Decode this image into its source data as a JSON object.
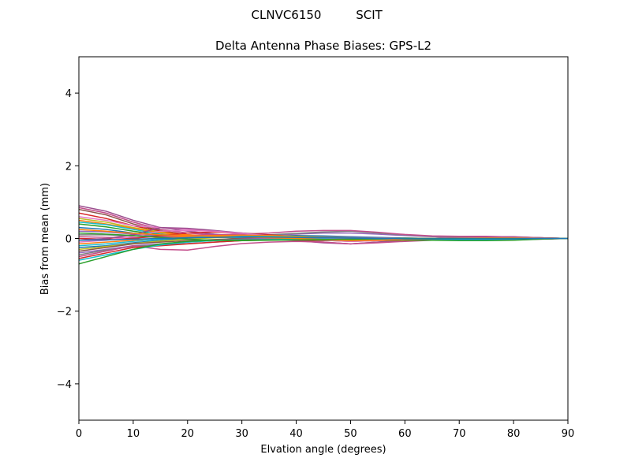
{
  "figure": {
    "suptitle_left": "CLNVC6150",
    "suptitle_right": "SCIT"
  },
  "chart_data": {
    "type": "line",
    "title": "Delta Antenna Phase Biases: GPS-L2",
    "xlabel": "Elvation angle (degrees)",
    "ylabel": "Bias from mean (mm)",
    "xlim": [
      0,
      90
    ],
    "ylim": [
      -5,
      5
    ],
    "xticks": [
      0,
      10,
      20,
      30,
      40,
      50,
      60,
      70,
      80,
      90
    ],
    "yticks": [
      -4,
      -2,
      0,
      2,
      4
    ],
    "xtick_labels": [
      "0",
      "10",
      "20",
      "30",
      "40",
      "50",
      "60",
      "70",
      "80",
      "90"
    ],
    "ytick_labels": [
      "−4",
      "−2",
      "0",
      "2",
      "4"
    ],
    "grid": false,
    "legend": "none",
    "x": [
      0,
      5,
      10,
      15,
      20,
      25,
      30,
      35,
      40,
      45,
      50,
      55,
      60,
      65,
      70,
      75,
      80,
      85,
      90
    ],
    "series": [
      {
        "color": "#c44e8c",
        "values": [
          0.85,
          0.7,
          0.45,
          0.25,
          0.15,
          0.1,
          0.05,
          0.0,
          -0.05,
          -0.1,
          -0.15,
          -0.1,
          -0.05,
          0.0,
          0.05,
          0.05,
          0.05,
          0.02,
          0.0
        ]
      },
      {
        "color": "#9a4d8e",
        "values": [
          0.9,
          0.75,
          0.5,
          0.3,
          0.2,
          0.12,
          0.06,
          0.0,
          -0.06,
          -0.12,
          -0.15,
          -0.1,
          -0.04,
          0.0,
          0.04,
          0.05,
          0.04,
          0.02,
          0.0
        ]
      },
      {
        "color": "#8c564b",
        "values": [
          0.8,
          0.65,
          0.4,
          0.22,
          0.1,
          0.05,
          0.02,
          0.0,
          -0.02,
          -0.05,
          -0.08,
          -0.06,
          -0.03,
          0.0,
          0.02,
          0.03,
          0.03,
          0.01,
          0.0
        ]
      },
      {
        "color": "#d62728",
        "values": [
          0.7,
          0.55,
          0.35,
          0.2,
          0.1,
          0.05,
          0.0,
          -0.03,
          -0.05,
          -0.06,
          -0.05,
          -0.03,
          -0.01,
          0.0,
          0.02,
          0.02,
          0.02,
          0.01,
          0.0
        ]
      },
      {
        "color": "#e377c2",
        "values": [
          0.6,
          0.5,
          0.35,
          0.3,
          0.25,
          0.2,
          0.12,
          0.05,
          -0.02,
          -0.05,
          -0.08,
          -0.06,
          -0.03,
          0.0,
          0.03,
          0.04,
          0.03,
          0.02,
          0.0
        ]
      },
      {
        "color": "#bcbd22",
        "values": [
          0.55,
          0.45,
          0.3,
          0.18,
          0.08,
          0.04,
          0.02,
          0.0,
          -0.02,
          -0.03,
          -0.03,
          -0.02,
          -0.01,
          0.0,
          0.01,
          0.01,
          0.01,
          0.0,
          0.0
        ]
      },
      {
        "color": "#ff7f0e",
        "values": [
          0.5,
          0.4,
          0.28,
          0.15,
          0.1,
          0.08,
          0.05,
          0.03,
          0.02,
          0.0,
          -0.02,
          -0.02,
          -0.01,
          0.0,
          0.01,
          0.02,
          0.02,
          0.01,
          0.0
        ]
      },
      {
        "color": "#17becf",
        "values": [
          0.45,
          0.38,
          0.25,
          0.12,
          0.05,
          0.03,
          0.02,
          0.02,
          0.03,
          0.04,
          0.03,
          0.02,
          0.01,
          0.0,
          -0.01,
          -0.01,
          -0.01,
          0.0,
          0.0
        ]
      },
      {
        "color": "#2ca02c",
        "values": [
          0.4,
          0.32,
          0.2,
          0.1,
          0.05,
          0.04,
          0.04,
          0.05,
          0.06,
          0.05,
          0.04,
          0.02,
          0.01,
          0.0,
          -0.01,
          -0.02,
          -0.02,
          -0.01,
          0.0
        ]
      },
      {
        "color": "#1f77b4",
        "values": [
          0.3,
          0.25,
          0.15,
          0.08,
          0.05,
          0.05,
          0.06,
          0.07,
          0.08,
          0.07,
          0.05,
          0.03,
          0.01,
          0.0,
          -0.01,
          -0.02,
          -0.02,
          -0.01,
          0.0
        ]
      },
      {
        "color": "#9467bd",
        "values": [
          0.2,
          0.18,
          0.12,
          0.06,
          0.04,
          0.05,
          0.07,
          0.09,
          0.12,
          0.15,
          0.15,
          0.12,
          0.08,
          0.05,
          0.04,
          0.04,
          0.03,
          0.02,
          0.0
        ]
      },
      {
        "color": "#7f7f7f",
        "values": [
          0.1,
          0.1,
          0.07,
          0.04,
          0.03,
          0.05,
          0.08,
          0.1,
          0.14,
          0.18,
          0.2,
          0.15,
          0.1,
          0.06,
          0.05,
          0.05,
          0.04,
          0.02,
          0.0
        ]
      },
      {
        "color": "#c44e8c",
        "values": [
          0.05,
          0.03,
          0.02,
          0.05,
          0.08,
          0.1,
          0.12,
          0.15,
          0.2,
          0.22,
          0.22,
          0.17,
          0.11,
          0.07,
          0.06,
          0.06,
          0.04,
          0.02,
          0.0
        ]
      },
      {
        "color": "#d62728",
        "values": [
          0.0,
          -0.02,
          0.0,
          0.08,
          0.15,
          0.18,
          0.15,
          0.1,
          0.05,
          0.02,
          0.0,
          0.0,
          0.0,
          0.0,
          0.01,
          0.02,
          0.02,
          0.01,
          0.0
        ]
      },
      {
        "color": "#9a4d8e",
        "values": [
          -0.05,
          0.0,
          0.1,
          0.3,
          0.28,
          0.22,
          0.15,
          0.08,
          0.02,
          -0.02,
          -0.04,
          -0.03,
          -0.02,
          0.0,
          0.02,
          0.03,
          0.03,
          0.01,
          0.0
        ]
      },
      {
        "color": "#e377c2",
        "values": [
          -0.1,
          -0.05,
          0.05,
          0.2,
          0.22,
          0.2,
          0.14,
          0.07,
          0.02,
          0.0,
          -0.02,
          -0.02,
          -0.01,
          0.0,
          0.01,
          0.02,
          0.02,
          0.01,
          0.0
        ]
      },
      {
        "color": "#ff7f0e",
        "values": [
          -0.15,
          -0.1,
          -0.05,
          0.02,
          0.06,
          0.08,
          0.09,
          0.08,
          0.06,
          0.04,
          0.02,
          0.0,
          -0.01,
          -0.02,
          -0.02,
          -0.02,
          -0.01,
          0.0,
          0.0
        ]
      },
      {
        "color": "#17becf",
        "values": [
          -0.2,
          -0.15,
          -0.08,
          -0.02,
          0.02,
          0.05,
          0.06,
          0.06,
          0.05,
          0.04,
          0.02,
          0.0,
          -0.02,
          -0.03,
          -0.03,
          -0.03,
          -0.02,
          -0.01,
          0.0
        ]
      },
      {
        "color": "#1f77b4",
        "values": [
          -0.25,
          -0.2,
          -0.12,
          -0.05,
          0.0,
          0.03,
          0.05,
          0.05,
          0.05,
          0.04,
          0.02,
          0.0,
          -0.02,
          -0.03,
          -0.04,
          -0.04,
          -0.03,
          -0.01,
          0.0
        ]
      },
      {
        "color": "#bcbd22",
        "values": [
          -0.3,
          -0.22,
          -0.14,
          -0.07,
          -0.02,
          0.02,
          0.04,
          0.05,
          0.05,
          0.04,
          0.03,
          0.01,
          -0.01,
          -0.03,
          -0.04,
          -0.04,
          -0.03,
          -0.01,
          0.0
        ]
      },
      {
        "color": "#8c564b",
        "values": [
          -0.35,
          -0.25,
          -0.15,
          -0.1,
          -0.06,
          -0.03,
          0.0,
          0.02,
          0.03,
          0.03,
          0.02,
          0.01,
          -0.01,
          -0.02,
          -0.03,
          -0.03,
          -0.02,
          -0.01,
          0.0
        ]
      },
      {
        "color": "#9467bd",
        "values": [
          -0.4,
          -0.3,
          -0.2,
          -0.15,
          -0.1,
          -0.05,
          -0.02,
          0.0,
          0.02,
          0.03,
          0.03,
          0.02,
          0.0,
          -0.02,
          -0.03,
          -0.03,
          -0.02,
          -0.01,
          0.0
        ]
      },
      {
        "color": "#7f7f7f",
        "values": [
          -0.45,
          -0.32,
          -0.22,
          -0.18,
          -0.14,
          -0.1,
          -0.06,
          -0.03,
          0.0,
          0.02,
          0.02,
          0.01,
          0.0,
          -0.01,
          -0.02,
          -0.02,
          -0.02,
          -0.01,
          0.0
        ]
      },
      {
        "color": "#c44e8c",
        "values": [
          -0.5,
          -0.35,
          -0.2,
          -0.3,
          -0.32,
          -0.22,
          -0.14,
          -0.1,
          -0.08,
          -0.1,
          -0.15,
          -0.12,
          -0.08,
          -0.05,
          -0.05,
          -0.05,
          -0.04,
          -0.02,
          0.0
        ]
      },
      {
        "color": "#d62728",
        "values": [
          -0.55,
          -0.4,
          -0.25,
          -0.2,
          -0.15,
          -0.1,
          -0.06,
          -0.04,
          -0.03,
          -0.03,
          -0.04,
          -0.04,
          -0.03,
          -0.02,
          -0.02,
          -0.02,
          -0.02,
          -0.01,
          0.0
        ]
      },
      {
        "color": "#17becf",
        "values": [
          -0.6,
          -0.45,
          -0.3,
          -0.18,
          -0.1,
          -0.06,
          -0.04,
          -0.03,
          -0.02,
          -0.02,
          -0.03,
          -0.03,
          -0.03,
          -0.03,
          -0.03,
          -0.03,
          -0.02,
          -0.01,
          0.0
        ]
      },
      {
        "color": "#2ca02c",
        "values": [
          -0.7,
          -0.5,
          -0.3,
          -0.15,
          -0.08,
          -0.05,
          -0.04,
          -0.04,
          -0.04,
          -0.04,
          -0.05,
          -0.05,
          -0.05,
          -0.05,
          -0.06,
          -0.06,
          -0.05,
          -0.02,
          0.0
        ]
      },
      {
        "color": "#ff7f0e",
        "values": [
          0.25,
          0.2,
          0.14,
          0.1,
          0.08,
          0.06,
          0.04,
          0.02,
          0.0,
          -0.03,
          -0.06,
          -0.05,
          -0.03,
          -0.01,
          0.0,
          0.01,
          0.01,
          0.0,
          0.0
        ]
      },
      {
        "color": "#2ca02c",
        "values": [
          0.15,
          0.12,
          0.08,
          0.03,
          -0.02,
          -0.05,
          -0.06,
          -0.05,
          -0.04,
          -0.03,
          -0.02,
          -0.01,
          0.0,
          0.0,
          0.0,
          0.0,
          0.0,
          0.0,
          0.0
        ]
      },
      {
        "color": "#1f77b4",
        "values": [
          -0.05,
          -0.04,
          -0.02,
          0.0,
          0.02,
          0.03,
          0.04,
          0.04,
          0.03,
          0.02,
          0.01,
          0.0,
          -0.01,
          -0.01,
          -0.01,
          -0.01,
          -0.01,
          0.0,
          0.0
        ]
      }
    ]
  }
}
